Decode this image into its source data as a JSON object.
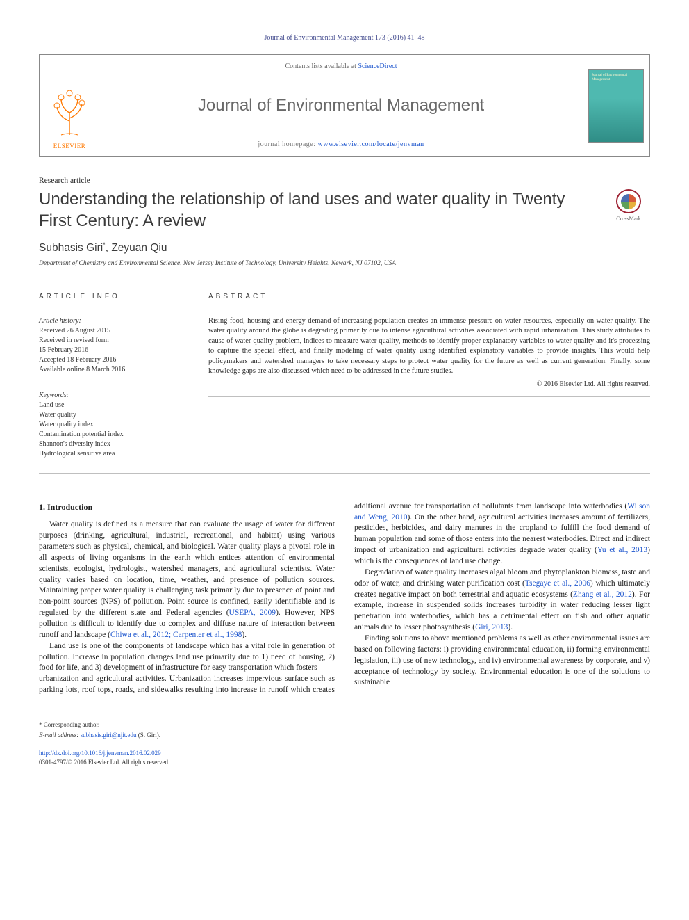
{
  "journal_ref": "Journal of Environmental Management 173 (2016) 41–48",
  "header": {
    "contents_prefix": "Contents lists available at ",
    "contents_link": "ScienceDirect",
    "journal_name": "Journal of Environmental Management",
    "homepage_prefix": "journal homepage: ",
    "homepage_link": "www.elsevier.com/locate/jenvman",
    "publisher_logo_text": "ELSEVIER",
    "cover_title": "Journal of Environmental Management"
  },
  "article_type": "Research article",
  "crossmark_label": "CrossMark",
  "title": "Understanding the relationship of land uses and water quality in Twenty First Century: A review",
  "authors_html": "Subhasis Giri<sup>*</sup>, Zeyuan Qiu",
  "affiliation": "Department of Chemistry and Environmental Science, New Jersey Institute of Technology, University Heights, Newark, NJ 07102, USA",
  "info": {
    "head": "ARTICLE INFO",
    "history_label": "Article history:",
    "history": [
      "Received 26 August 2015",
      "Received in revised form",
      "15 February 2016",
      "Accepted 18 February 2016",
      "Available online 8 March 2016"
    ],
    "keywords_label": "Keywords:",
    "keywords": [
      "Land use",
      "Water quality",
      "Water quality index",
      "Contamination potential index",
      "Shannon's diversity index",
      "Hydrological sensitive area"
    ]
  },
  "abstract": {
    "head": "ABSTRACT",
    "text": "Rising food, housing and energy demand of increasing population creates an immense pressure on water resources, especially on water quality. The water quality around the globe is degrading primarily due to intense agricultural activities associated with rapid urbanization. This study attributes to cause of water quality problem, indices to measure water quality, methods to identify proper explanatory variables to water quality and it's processing to capture the special effect, and finally modeling of water quality using identified explanatory variables to provide insights. This would help policymakers and watershed managers to take necessary steps to protect water quality for the future as well as current generation. Finally, some knowledge gaps are also discussed which need to be addressed in the future studies.",
    "copyright": "© 2016 Elsevier Ltd. All rights reserved."
  },
  "body": {
    "section_title": "1. Introduction",
    "p1a": "Water quality is defined as a measure that can evaluate the usage of water for different purposes (drinking, agricultural, industrial, recreational, and habitat) using various parameters such as physical, chemical, and biological. Water quality plays a pivotal role in all aspects of living organisms in the earth which entices attention of environmental scientists, ecologist, hydrologist, watershed managers, and agricultural scientists. Water quality varies based on location, time, weather, and presence of pollution sources. Maintaining proper water quality is challenging task primarily due to presence of point and non-point sources (NPS) of pollution. Point source is confined, easily identifiable and is regulated by the different state and Federal agencies (",
    "p1_ref1": "USEPA, 2009",
    "p1b": "). However, NPS pollution is difficult to identify due to complex and diffuse nature of interaction between runoff and landscape (",
    "p1_ref2": "Chiwa et al., 2012; Carpenter et al., 1998",
    "p1c": ").",
    "p2": "Land use is one of the components of landscape which has a vital role in generation of pollution. Increase in population changes land use primarily due to 1) need of housing, 2) food for life, and 3) development of infrastructure for easy transportation which fosters",
    "p3a": "urbanization and agricultural activities. Urbanization increases impervious surface such as parking lots, roof tops, roads, and sidewalks resulting into increase in runoff which creates additional avenue for transportation of pollutants from landscape into waterbodies (",
    "p3_ref1": "Wilson and Weng, 2010",
    "p3b": "). On the other hand, agricultural activities increases amount of fertilizers, pesticides, herbicides, and dairy manures in the cropland to fulfill the food demand of human population and some of those enters into the nearest waterbodies. Direct and indirect impact of urbanization and agricultural activities degrade water quality (",
    "p3_ref2": "Yu et al., 2013",
    "p3c": ") which is the consequences of land use change.",
    "p4a": "Degradation of water quality increases algal bloom and phytoplankton biomass, taste and odor of water, and drinking water purification cost (",
    "p4_ref1": "Tsegaye et al., 2006",
    "p4b": ") which ultimately creates negative impact on both terrestrial and aquatic ecosystems (",
    "p4_ref2": "Zhang et al., 2012",
    "p4c": "). For example, increase in suspended solids increases turbidity in water reducing lesser light penetration into waterbodies, which has a detrimental effect on fish and other aquatic animals due to lesser photosynthesis (",
    "p4_ref3": "Giri, 2013",
    "p4d": ").",
    "p5": "Finding solutions to above mentioned problems as well as other environmental issues are based on following factors: i) providing environmental education, ii) forming environmental legislation, iii) use of new technology, and iv) environmental awareness by corporate, and v) acceptance of technology by society. Environmental education is one of the solutions to sustainable"
  },
  "footnotes": {
    "corresponding": "* Corresponding author.",
    "email_label": "E-mail address:",
    "email": "subhasis.giri@njit.edu",
    "email_suffix": "(S. Giri)."
  },
  "doi": {
    "link": "http://dx.doi.org/10.1016/j.jenvman.2016.02.029",
    "issn_line": "0301-4797/© 2016 Elsevier Ltd. All rights reserved."
  },
  "colors": {
    "link": "#1f57ce",
    "logo_orange": "#ff7800",
    "header_gray": "#696969"
  }
}
